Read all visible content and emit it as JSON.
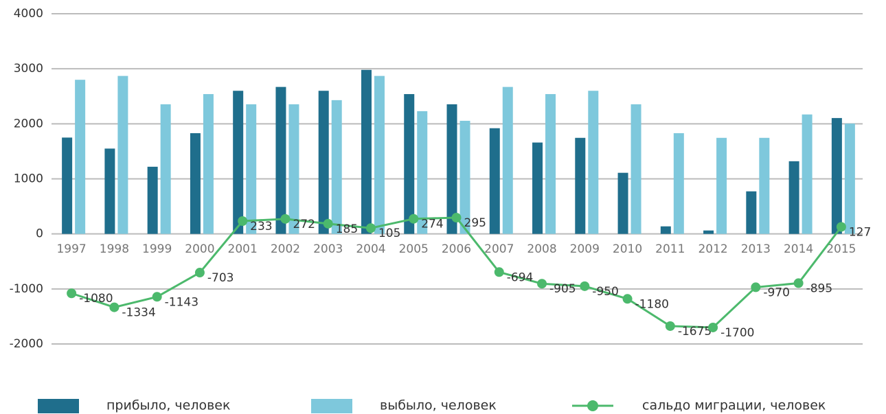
{
  "chart_data": {
    "type": "bar",
    "categories": [
      "1997",
      "1998",
      "1999",
      "2000",
      "2001",
      "2002",
      "2003",
      "2004",
      "2005",
      "2006",
      "2007",
      "2008",
      "2009",
      "2010",
      "2011",
      "2012",
      "2013",
      "2014",
      "2015"
    ],
    "series": [
      {
        "name": "прибыло, человек",
        "type": "bar",
        "color": "#1f6e8c",
        "values": [
          1750,
          1550,
          1220,
          1830,
          2600,
          2670,
          2600,
          2980,
          2540,
          2355,
          1920,
          1660,
          1745,
          1110,
          137,
          62,
          773,
          1320,
          2105
        ]
      },
      {
        "name": "выбыло, человек",
        "type": "bar",
        "color": "#7ec8dc",
        "values": [
          2800,
          2870,
          2355,
          2540,
          2355,
          2355,
          2430,
          2870,
          2230,
          2055,
          2670,
          2540,
          2600,
          2355,
          1830,
          1745,
          1745,
          2170,
          2005
        ]
      },
      {
        "name": "сальдо миграции, человек",
        "type": "line",
        "color": "#4cb96c",
        "values": [
          -1080,
          -1334,
          -1143,
          -703,
          233,
          272,
          185,
          105,
          274,
          295,
          -694,
          -905,
          -950,
          -1180,
          -1675,
          -1700,
          -970,
          -895,
          127
        ]
      }
    ],
    "ylim": [
      -2000,
      4000
    ],
    "yticks": [
      -2000,
      -1000,
      0,
      1000,
      2000,
      3000,
      4000
    ],
    "grid": true
  }
}
